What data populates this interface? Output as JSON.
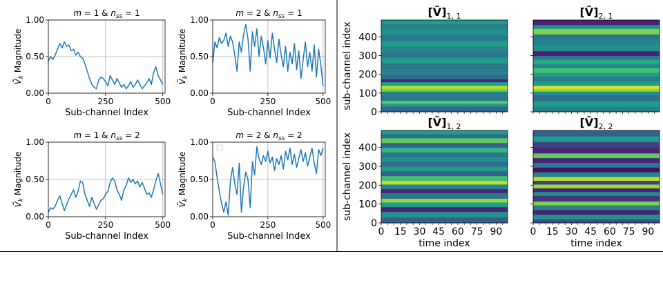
{
  "chart_data": [
    {
      "type": "line",
      "title": "m = 1 & n_ss = 1",
      "title_parts": {
        "m": "1",
        "nss": "1"
      },
      "xlabel": "Sub-channel Index",
      "ylabel": "Magnitude",
      "ylabel_symbol": "V",
      "xlim": [
        0,
        510
      ],
      "ylim": [
        0,
        1
      ],
      "xticks": [
        0,
        250,
        500
      ],
      "yticks": [
        0.0,
        0.5,
        1.0
      ],
      "xtick_labels": [
        "0",
        "250",
        "500"
      ],
      "ytick_labels": [
        "0.00",
        "0.50",
        "1.00"
      ],
      "grid": true,
      "color": "#1f77b4",
      "x": [
        0,
        10,
        20,
        30,
        40,
        50,
        60,
        70,
        80,
        90,
        100,
        110,
        120,
        130,
        140,
        150,
        160,
        170,
        180,
        190,
        200,
        210,
        220,
        230,
        240,
        250,
        260,
        270,
        280,
        290,
        300,
        310,
        320,
        330,
        340,
        350,
        360,
        370,
        380,
        390,
        400,
        410,
        420,
        430,
        440,
        450,
        460,
        470,
        480,
        490,
        500
      ],
      "values": [
        0.44,
        0.5,
        0.46,
        0.52,
        0.6,
        0.68,
        0.62,
        0.7,
        0.64,
        0.66,
        0.58,
        0.6,
        0.52,
        0.56,
        0.5,
        0.48,
        0.4,
        0.3,
        0.2,
        0.12,
        0.08,
        0.06,
        0.18,
        0.22,
        0.2,
        0.16,
        0.1,
        0.24,
        0.18,
        0.12,
        0.2,
        0.14,
        0.08,
        0.12,
        0.06,
        0.1,
        0.16,
        0.08,
        0.12,
        0.18,
        0.12,
        0.06,
        0.1,
        0.14,
        0.2,
        0.12,
        0.28,
        0.36,
        0.24,
        0.18,
        0.12
      ]
    },
    {
      "type": "line",
      "title": "m = 2 & n_ss = 1",
      "title_parts": {
        "m": "2",
        "nss": "1"
      },
      "xlabel": "Sub-channel Index",
      "ylabel": "Magnitude",
      "ylabel_symbol": "V",
      "xlim": [
        0,
        510
      ],
      "ylim": [
        0,
        1
      ],
      "xticks": [
        0,
        250,
        500
      ],
      "yticks": [
        0.0,
        0.5,
        1.0
      ],
      "xtick_labels": [
        "0",
        "250",
        "500"
      ],
      "ytick_labels": [
        "0.00",
        "0.50",
        "1.00"
      ],
      "grid": true,
      "color": "#1f77b4",
      "x": [
        0,
        10,
        20,
        30,
        40,
        50,
        60,
        70,
        80,
        90,
        100,
        110,
        120,
        130,
        140,
        150,
        160,
        170,
        180,
        190,
        200,
        210,
        220,
        230,
        240,
        250,
        260,
        270,
        280,
        290,
        300,
        310,
        320,
        330,
        340,
        350,
        360,
        370,
        380,
        390,
        400,
        410,
        420,
        430,
        440,
        450,
        460,
        470,
        480,
        490,
        500
      ],
      "values": [
        0.42,
        0.7,
        0.62,
        0.76,
        0.68,
        0.72,
        0.82,
        0.64,
        0.78,
        0.7,
        0.52,
        0.3,
        0.7,
        0.56,
        0.8,
        0.94,
        0.74,
        0.3,
        0.84,
        0.64,
        0.88,
        0.5,
        0.78,
        0.62,
        0.4,
        0.72,
        0.48,
        0.82,
        0.6,
        0.42,
        0.74,
        0.52,
        0.36,
        0.64,
        0.3,
        0.56,
        0.4,
        0.68,
        0.32,
        0.58,
        0.2,
        0.46,
        0.7,
        0.36,
        0.56,
        0.3,
        0.66,
        0.22,
        0.6,
        0.38,
        0.1
      ]
    },
    {
      "type": "line",
      "title": "m = 1 & n_ss = 2",
      "title_parts": {
        "m": "1",
        "nss": "2"
      },
      "xlabel": "Sub-channel Index",
      "ylabel": "Magnitude",
      "ylabel_symbol": "V",
      "xlim": [
        0,
        510
      ],
      "ylim": [
        0,
        1
      ],
      "xticks": [
        0,
        250,
        500
      ],
      "yticks": [
        0.0,
        0.5,
        1.0
      ],
      "xtick_labels": [
        "0",
        "250",
        "500"
      ],
      "ytick_labels": [
        "0.00",
        "0.50",
        "1.00"
      ],
      "grid": true,
      "color": "#1f77b4",
      "x": [
        0,
        10,
        20,
        30,
        40,
        50,
        60,
        70,
        80,
        90,
        100,
        110,
        120,
        130,
        140,
        150,
        160,
        170,
        180,
        190,
        200,
        210,
        220,
        230,
        240,
        250,
        260,
        270,
        280,
        290,
        300,
        310,
        320,
        330,
        340,
        350,
        360,
        370,
        380,
        390,
        400,
        410,
        420,
        430,
        440,
        450,
        460,
        470,
        480,
        490,
        500
      ],
      "values": [
        0.06,
        0.12,
        0.1,
        0.14,
        0.22,
        0.28,
        0.18,
        0.08,
        0.16,
        0.24,
        0.3,
        0.36,
        0.26,
        0.34,
        0.48,
        0.46,
        0.3,
        0.22,
        0.14,
        0.26,
        0.18,
        0.1,
        0.16,
        0.22,
        0.24,
        0.3,
        0.34,
        0.46,
        0.52,
        0.48,
        0.36,
        0.3,
        0.22,
        0.36,
        0.42,
        0.52,
        0.46,
        0.5,
        0.44,
        0.48,
        0.4,
        0.46,
        0.38,
        0.3,
        0.32,
        0.26,
        0.36,
        0.48,
        0.58,
        0.44,
        0.3
      ]
    },
    {
      "type": "line",
      "title": "m = 2 & n_ss = 2",
      "title_parts": {
        "m": "2",
        "nss": "2"
      },
      "xlabel": "Sub-channel Index",
      "ylabel": "Magnitude",
      "ylabel_symbol": "V",
      "xlim": [
        0,
        510
      ],
      "ylim": [
        0,
        1
      ],
      "xticks": [
        0,
        250,
        500
      ],
      "yticks": [
        0.0,
        0.5,
        1.0
      ],
      "xtick_labels": [
        "0",
        "250",
        "500"
      ],
      "ytick_labels": [
        "0.00",
        "0.50",
        "1.00"
      ],
      "grid": true,
      "color": "#1f77b4",
      "x": [
        0,
        10,
        20,
        30,
        40,
        50,
        60,
        70,
        80,
        90,
        100,
        110,
        120,
        130,
        140,
        150,
        160,
        170,
        180,
        190,
        200,
        210,
        220,
        230,
        240,
        250,
        260,
        270,
        280,
        290,
        300,
        310,
        320,
        330,
        340,
        350,
        360,
        370,
        380,
        390,
        400,
        410,
        420,
        430,
        440,
        450,
        460,
        470,
        480,
        490,
        500
      ],
      "values": [
        0.8,
        0.74,
        0.52,
        0.34,
        0.18,
        0.06,
        0.2,
        0.02,
        0.48,
        0.66,
        0.44,
        0.3,
        0.72,
        0.06,
        0.4,
        0.6,
        0.5,
        0.12,
        0.74,
        0.56,
        0.94,
        0.78,
        0.7,
        0.82,
        0.74,
        0.88,
        0.72,
        0.8,
        0.62,
        0.78,
        0.7,
        0.82,
        0.64,
        0.88,
        0.76,
        0.92,
        0.7,
        0.84,
        0.66,
        0.78,
        0.9,
        0.74,
        0.86,
        0.68,
        0.8,
        0.92,
        0.72,
        0.58,
        0.9,
        0.82,
        0.92
      ]
    },
    {
      "type": "heatmap",
      "title": "[Ṽ]_{1, 1}",
      "title_parts": {
        "sub": "1, 1"
      },
      "xlabel": "",
      "ylabel": "sub-channel index",
      "xlim": [
        0,
        99
      ],
      "ylim": [
        0,
        490
      ],
      "yticks": [
        0,
        100,
        200,
        300,
        400
      ],
      "ytick_labels": [
        "0",
        "100",
        "200",
        "300",
        "400"
      ],
      "xtick_labels": [],
      "rows": [
        {
          "y": 0,
          "v": 0.35
        },
        {
          "y": 30,
          "v": 0.55
        },
        {
          "y": 45,
          "v": 0.75
        },
        {
          "y": 60,
          "v": 0.4
        },
        {
          "y": 85,
          "v": 0.45
        },
        {
          "y": 110,
          "v": 0.8
        },
        {
          "y": 125,
          "v": 0.9
        },
        {
          "y": 140,
          "v": 0.55
        },
        {
          "y": 160,
          "v": 0.1
        },
        {
          "y": 175,
          "v": 0.35
        },
        {
          "y": 200,
          "v": 0.45
        },
        {
          "y": 230,
          "v": 0.4
        },
        {
          "y": 260,
          "v": 0.55
        },
        {
          "y": 290,
          "v": 0.4
        },
        {
          "y": 320,
          "v": 0.45
        },
        {
          "y": 350,
          "v": 0.55
        },
        {
          "y": 380,
          "v": 0.4
        },
        {
          "y": 410,
          "v": 0.5
        },
        {
          "y": 440,
          "v": 0.45
        },
        {
          "y": 470,
          "v": 0.55
        }
      ]
    },
    {
      "type": "heatmap",
      "title": "[Ṽ]_{2, 1}",
      "title_parts": {
        "sub": "2, 1"
      },
      "xlabel": "",
      "ylabel": "",
      "xlim": [
        0,
        99
      ],
      "ylim": [
        0,
        490
      ],
      "yticks": [
        0,
        100,
        200,
        300,
        400
      ],
      "ytick_labels": [],
      "xtick_labels": [],
      "rows": [
        {
          "y": 0,
          "v": 0.45
        },
        {
          "y": 30,
          "v": 0.55
        },
        {
          "y": 60,
          "v": 0.35
        },
        {
          "y": 90,
          "v": 0.5
        },
        {
          "y": 110,
          "v": 0.85
        },
        {
          "y": 125,
          "v": 0.95
        },
        {
          "y": 140,
          "v": 0.55
        },
        {
          "y": 165,
          "v": 0.4
        },
        {
          "y": 190,
          "v": 0.55
        },
        {
          "y": 210,
          "v": 0.7
        },
        {
          "y": 235,
          "v": 0.45
        },
        {
          "y": 255,
          "v": 0.6
        },
        {
          "y": 280,
          "v": 0.4
        },
        {
          "y": 300,
          "v": 0.1
        },
        {
          "y": 325,
          "v": 0.5
        },
        {
          "y": 355,
          "v": 0.45
        },
        {
          "y": 385,
          "v": 0.4
        },
        {
          "y": 415,
          "v": 0.8
        },
        {
          "y": 445,
          "v": 0.5
        },
        {
          "y": 465,
          "v": 0.1
        }
      ]
    },
    {
      "type": "heatmap",
      "title": "[Ṽ]_{1, 2}",
      "title_parts": {
        "sub": "1, 2"
      },
      "xlabel": "time index",
      "ylabel": "sub-channel index",
      "xlim": [
        0,
        99
      ],
      "ylim": [
        0,
        490
      ],
      "xticks": [
        0,
        15,
        30,
        45,
        60,
        75,
        90
      ],
      "xtick_labels": [
        "0",
        "15",
        "30",
        "45",
        "60",
        "75",
        "90"
      ],
      "yticks": [
        0,
        100,
        200,
        300,
        400
      ],
      "ytick_labels": [
        "0",
        "100",
        "200",
        "300",
        "400"
      ],
      "rows": [
        {
          "y": 0,
          "v": 0.3
        },
        {
          "y": 30,
          "v": 0.5
        },
        {
          "y": 60,
          "v": 0.1
        },
        {
          "y": 85,
          "v": 0.55
        },
        {
          "y": 110,
          "v": 0.85
        },
        {
          "y": 130,
          "v": 0.4
        },
        {
          "y": 160,
          "v": 0.1
        },
        {
          "y": 180,
          "v": 0.45
        },
        {
          "y": 205,
          "v": 0.9
        },
        {
          "y": 225,
          "v": 0.7
        },
        {
          "y": 250,
          "v": 0.3
        },
        {
          "y": 275,
          "v": 0.55
        },
        {
          "y": 300,
          "v": 0.35
        },
        {
          "y": 325,
          "v": 0.5
        },
        {
          "y": 350,
          "v": 0.4
        },
        {
          "y": 375,
          "v": 0.65
        },
        {
          "y": 400,
          "v": 0.3
        },
        {
          "y": 425,
          "v": 0.75
        },
        {
          "y": 450,
          "v": 0.35
        },
        {
          "y": 470,
          "v": 0.55
        }
      ]
    },
    {
      "type": "heatmap",
      "title": "[Ṽ]_{2, 2}",
      "title_parts": {
        "sub": "2, 2"
      },
      "xlabel": "time index",
      "ylabel": "",
      "xlim": [
        0,
        99
      ],
      "ylim": [
        0,
        490
      ],
      "xticks": [
        0,
        15,
        30,
        45,
        60,
        75,
        90
      ],
      "xtick_labels": [
        "0",
        "15",
        "30",
        "45",
        "60",
        "75",
        "90"
      ],
      "yticks": [
        0,
        100,
        200,
        300,
        400
      ],
      "ytick_labels": [],
      "rows": [
        {
          "y": 0,
          "v": 0.25
        },
        {
          "y": 20,
          "v": 0.5
        },
        {
          "y": 45,
          "v": 0.1
        },
        {
          "y": 70,
          "v": 0.45
        },
        {
          "y": 95,
          "v": 0.8
        },
        {
          "y": 115,
          "v": 0.15
        },
        {
          "y": 145,
          "v": 0.5
        },
        {
          "y": 165,
          "v": 0.1
        },
        {
          "y": 185,
          "v": 0.85
        },
        {
          "y": 205,
          "v": 0.2
        },
        {
          "y": 225,
          "v": 0.9
        },
        {
          "y": 245,
          "v": 0.45
        },
        {
          "y": 270,
          "v": 0.05
        },
        {
          "y": 295,
          "v": 0.4
        },
        {
          "y": 320,
          "v": 0.1
        },
        {
          "y": 345,
          "v": 0.75
        },
        {
          "y": 370,
          "v": 0.1
        },
        {
          "y": 400,
          "v": 0.2
        },
        {
          "y": 430,
          "v": 0.55
        },
        {
          "y": 460,
          "v": 0.3
        }
      ]
    }
  ]
}
